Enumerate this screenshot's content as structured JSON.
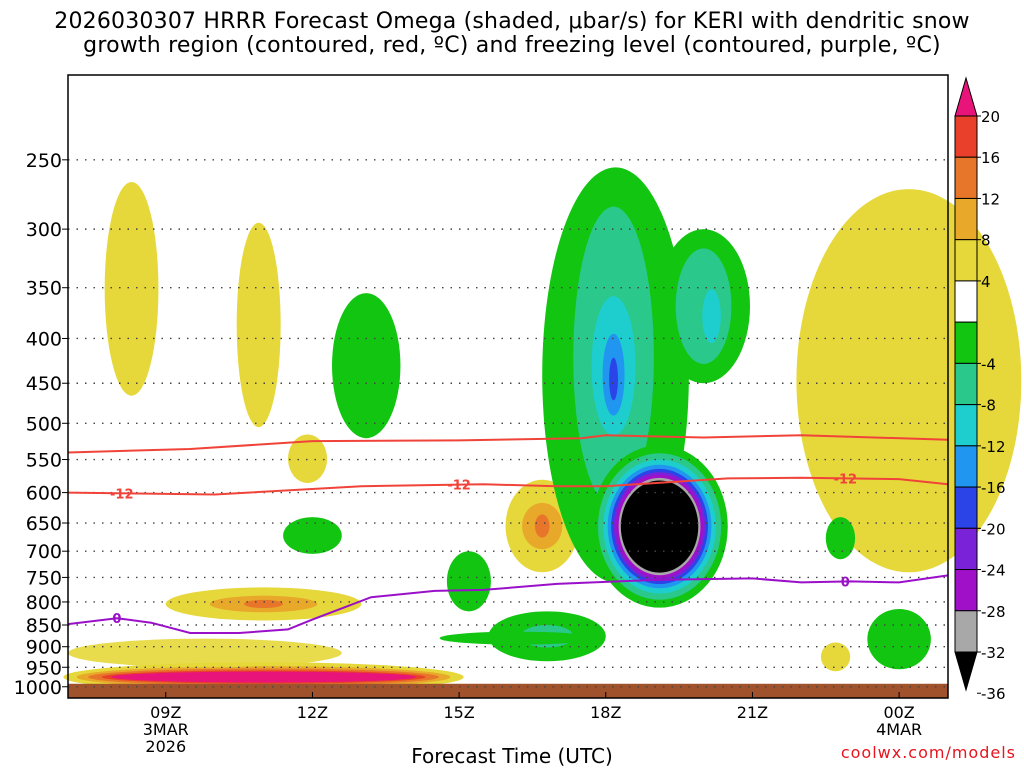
{
  "title": {
    "line1": "2026030307 HRRR Forecast Omega (shaded, μbar/s) for KERI with dendritic snow",
    "line2": "growth region (contoured, red, ºC) and freezing level (contoured, purple, ºC)"
  },
  "credit": "coolwx.com/models",
  "chart_data": {
    "type": "time-height cross section",
    "title": "2026030307 HRRR Forecast Omega (shaded, μbar/s) for KERI with dendritic snow growth region (contoured, red, ºC) and freezing level (contoured, purple, ºC)",
    "xlabel": "Forecast Time (UTC)",
    "ylabel": "",
    "x_ticks": [
      {
        "hour": 9,
        "label": "09Z",
        "sub": [
          "3MAR",
          "2026"
        ]
      },
      {
        "hour": 12,
        "label": "12Z",
        "sub": []
      },
      {
        "hour": 15,
        "label": "15Z",
        "sub": []
      },
      {
        "hour": 18,
        "label": "18Z",
        "sub": []
      },
      {
        "hour": 21,
        "label": "21Z",
        "sub": []
      },
      {
        "hour": 24,
        "label": "00Z",
        "sub": [
          "4MAR"
        ]
      }
    ],
    "xlim_hours": [
      7,
      25
    ],
    "y_ticks": [
      250,
      300,
      350,
      400,
      450,
      500,
      550,
      600,
      650,
      700,
      750,
      800,
      850,
      900,
      950,
      1000
    ],
    "ylim_hPa": [
      200,
      1030
    ],
    "grid": "dotted horizontal",
    "colorbar": {
      "labels": [
        "20",
        "16",
        "12",
        "8",
        "4",
        "-4",
        "-8",
        "-12",
        "-16",
        "-20",
        "-24",
        "-28",
        "-32",
        "-36"
      ],
      "levels": [
        20,
        16,
        12,
        8,
        4,
        -4,
        -8,
        -12,
        -16,
        -20,
        -24,
        -28,
        -32,
        -36
      ],
      "colors": [
        "#e8147a",
        "#e8402a",
        "#e8762a",
        "#e8a82a",
        "#e6d83a",
        "#ffffff",
        "#11c511",
        "#2ac88a",
        "#1ecece",
        "#2196f0",
        "#2a44e8",
        "#7a22d8",
        "#a010c8",
        "#a8a8a8",
        "#000000"
      ]
    },
    "red_contours": [
      {
        "level": -12,
        "label": "-12",
        "points": [
          [
            7,
            600
          ],
          [
            10,
            603
          ],
          [
            13,
            590
          ],
          [
            15.5,
            587
          ],
          [
            17,
            590
          ],
          [
            18,
            590
          ],
          [
            20.5,
            578
          ],
          [
            22,
            577
          ],
          [
            24,
            579
          ],
          [
            25,
            587
          ]
        ]
      },
      {
        "level": -17,
        "label": "",
        "points": [
          [
            7,
            540
          ],
          [
            9.5,
            535
          ],
          [
            12,
            524
          ],
          [
            15,
            523
          ],
          [
            17.5,
            520
          ],
          [
            18,
            516
          ],
          [
            20,
            519
          ],
          [
            22,
            516
          ],
          [
            25,
            522
          ]
        ]
      }
    ],
    "purple_contours": [
      {
        "level": 0,
        "label": "0",
        "points": [
          [
            7,
            848
          ],
          [
            8,
            835
          ],
          [
            8.7,
            845
          ],
          [
            9.5,
            868
          ],
          [
            10.5,
            868
          ],
          [
            11.5,
            860
          ],
          [
            12,
            838
          ],
          [
            13.2,
            790
          ],
          [
            14.5,
            777
          ],
          [
            15.5,
            775
          ],
          [
            17,
            763
          ],
          [
            19,
            755
          ],
          [
            21,
            752
          ],
          [
            22,
            760
          ],
          [
            23,
            758
          ],
          [
            24,
            760
          ],
          [
            25,
            746
          ]
        ]
      }
    ],
    "omega_features": [
      {
        "omega": 4,
        "hour": 8.3,
        "p_top": 265,
        "p_bot": 465,
        "half_hours": 0.55
      },
      {
        "omega": 4,
        "hour": 10.9,
        "p_top": 295,
        "p_bot": 505,
        "half_hours": 0.45
      },
      {
        "omega": -4,
        "hour": 13.1,
        "p_top": 355,
        "p_bot": 520,
        "half_hours": 0.7
      },
      {
        "omega": -4,
        "hour": 12.0,
        "p_top": 640,
        "p_bot": 705,
        "half_hours": 0.6
      },
      {
        "omega": 4,
        "hour": 11.9,
        "p_top": 515,
        "p_bot": 585,
        "half_hours": 0.4
      },
      {
        "omega": 8,
        "hour": 16.7,
        "p_top": 580,
        "p_bot": 740,
        "half_hours": 0.75
      },
      {
        "omega": -4,
        "hour": 15.2,
        "p_top": 700,
        "p_bot": 820,
        "half_hours": 0.45
      },
      {
        "omega": -4,
        "hour": 16.8,
        "p_top": 820,
        "p_bot": 935,
        "half_hours": 1.2
      },
      {
        "omega": -4,
        "hour": 18.2,
        "p_top": 255,
        "p_bot": 760,
        "half_hours": 1.5
      },
      {
        "omega": -36,
        "hour": 19.1,
        "p_top": 570,
        "p_bot": 755,
        "half_hours": 0.9
      },
      {
        "omega": -4,
        "hour": 20.0,
        "p_top": 300,
        "p_bot": 450,
        "half_hours": 0.95
      },
      {
        "omega": 4,
        "hour": 24.2,
        "p_top": 270,
        "p_bot": 740,
        "half_hours": 2.3
      },
      {
        "omega": -4,
        "hour": 22.8,
        "p_top": 640,
        "p_bot": 715,
        "half_hours": 0.3
      },
      {
        "omega": -4,
        "hour": 24.0,
        "p_top": 815,
        "p_bot": 955,
        "half_hours": 0.65
      },
      {
        "omega": 8,
        "hour": 11.0,
        "p_top": 770,
        "p_bot": 840,
        "half_hours": 2.0
      },
      {
        "omega": 20,
        "hour": 11.0,
        "p_top": 955,
        "p_bot": 995,
        "half_hours": 3.9
      },
      {
        "omega": 4,
        "hour": 22.7,
        "p_top": 890,
        "p_bot": 960,
        "half_hours": 0.3
      }
    ],
    "ground_level_hPa": 1000
  }
}
